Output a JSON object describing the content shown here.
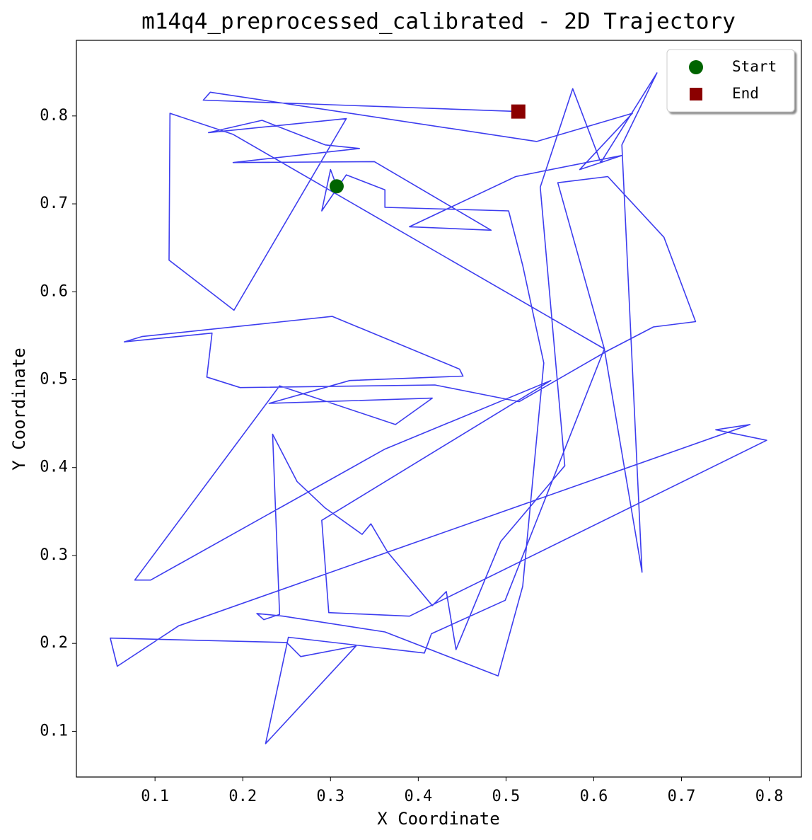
{
  "chart_data": {
    "type": "line",
    "title": "m14q4_preprocessed_calibrated - 2D Trajectory",
    "x_label": "X Coordinate",
    "y_label": "Y Coordinate",
    "xlim": [
      0.0104,
      0.8366
    ],
    "ylim": [
      0.048,
      0.886
    ],
    "xticks": [
      0.1,
      0.2,
      0.3,
      0.4,
      0.5,
      0.6,
      0.7,
      0.8
    ],
    "yticks": [
      0.1,
      0.2,
      0.3,
      0.4,
      0.5,
      0.6,
      0.7,
      0.8
    ],
    "legend": "upper right",
    "trajectory": {
      "color": "#3333ee",
      "x": [
        0.307,
        0.3,
        0.29,
        0.318,
        0.362,
        0.362,
        0.503,
        0.519,
        0.543,
        0.519,
        0.491,
        0.362,
        0.246,
        0.216,
        0.224,
        0.242,
        0.234,
        0.262,
        0.294,
        0.336,
        0.346,
        0.365,
        0.416,
        0.432,
        0.443,
        0.494,
        0.567,
        0.539,
        0.576,
        0.608,
        0.672,
        0.632,
        0.655,
        0.612,
        0.559,
        0.616,
        0.68,
        0.716,
        0.668,
        0.616,
        0.515,
        0.419,
        0.197,
        0.159,
        0.165,
        0.065,
        0.085,
        0.302,
        0.447,
        0.451,
        0.322,
        0.23,
        0.416,
        0.374,
        0.242,
        0.077,
        0.095,
        0.362,
        0.551,
        0.29,
        0.298,
        0.39,
        0.797,
        0.739,
        0.778,
        0.127,
        0.057,
        0.049,
        0.25,
        0.266,
        0.329,
        0.226,
        0.252,
        0.407,
        0.415,
        0.499,
        0.612,
        0.189,
        0.117,
        0.116,
        0.19,
        0.318,
        0.161,
        0.222,
        0.294,
        0.333,
        0.189,
        0.35,
        0.483,
        0.39,
        0.511,
        0.632,
        0.584,
        0.644,
        0.535,
        0.163,
        0.155,
        0.514
      ],
      "y": [
        0.72,
        0.739,
        0.692,
        0.733,
        0.716,
        0.696,
        0.692,
        0.63,
        0.519,
        0.265,
        0.163,
        0.213,
        0.231,
        0.234,
        0.227,
        0.233,
        0.438,
        0.384,
        0.354,
        0.324,
        0.336,
        0.304,
        0.243,
        0.259,
        0.193,
        0.316,
        0.402,
        0.719,
        0.831,
        0.747,
        0.849,
        0.767,
        0.281,
        0.535,
        0.724,
        0.731,
        0.662,
        0.566,
        0.56,
        0.533,
        0.475,
        0.494,
        0.491,
        0.503,
        0.553,
        0.543,
        0.549,
        0.572,
        0.512,
        0.504,
        0.499,
        0.473,
        0.479,
        0.449,
        0.493,
        0.272,
        0.272,
        0.421,
        0.499,
        0.34,
        0.235,
        0.231,
        0.431,
        0.443,
        0.449,
        0.22,
        0.174,
        0.206,
        0.201,
        0.185,
        0.197,
        0.086,
        0.207,
        0.189,
        0.211,
        0.249,
        0.535,
        0.779,
        0.803,
        0.636,
        0.579,
        0.797,
        0.781,
        0.795,
        0.767,
        0.763,
        0.747,
        0.748,
        0.67,
        0.674,
        0.731,
        0.755,
        0.739,
        0.803,
        0.771,
        0.827,
        0.818,
        0.805
      ]
    },
    "series": [
      {
        "name": "Start",
        "color": "#006400",
        "marker": "circle",
        "x": [
          0.307
        ],
        "y": [
          0.72
        ]
      },
      {
        "name": "End",
        "color": "#8b0000",
        "marker": "square",
        "x": [
          0.514
        ],
        "y": [
          0.805
        ]
      }
    ]
  }
}
